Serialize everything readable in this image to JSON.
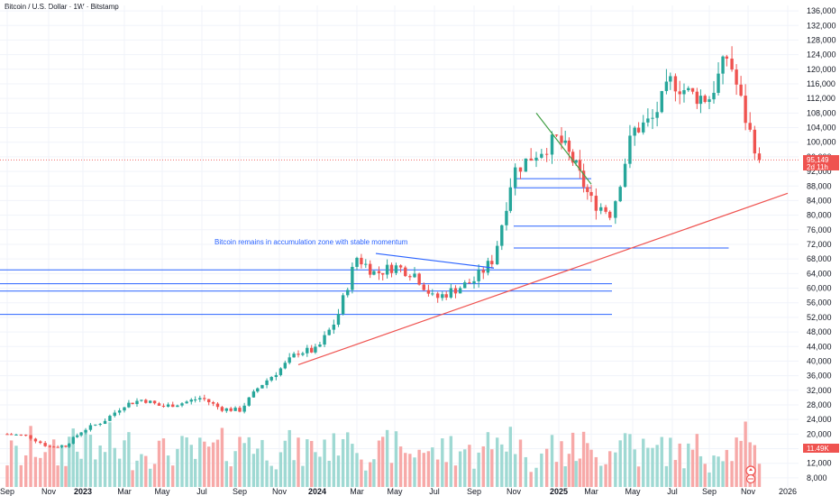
{
  "chart_data": {
    "type": "candlestick",
    "title": "Bitcoin / U.S. Dollar · 1W · Bitstamp",
    "price_axis": {
      "ticks": [
        136000,
        132000,
        128000,
        124000,
        120000,
        116000,
        112000,
        108000,
        104000,
        100000,
        96000,
        92000,
        88000,
        84000,
        80000,
        76000,
        72000,
        68000,
        64000,
        60000,
        56000,
        52000,
        48000,
        44000,
        40000,
        36000,
        32000,
        28000,
        24000,
        20000,
        16000,
        12000,
        8000
      ],
      "tick_labels": [
        "136,000",
        "132,000",
        "128,000",
        "124,000",
        "120,000",
        "116,000",
        "112,000",
        "108,000",
        "104,000",
        "100,000",
        "96,000",
        "92,000",
        "88,000",
        "84,000",
        "80,000",
        "76,000",
        "72,000",
        "68,000",
        "64,000",
        "60,000",
        "56,000",
        "52,000",
        "48,000",
        "44,000",
        "40,000",
        "36,000",
        "32,000",
        "28,000",
        "24,000",
        "20,000",
        "16,000",
        "12,000",
        "8,000"
      ],
      "range": [
        5500,
        137500
      ]
    },
    "time_axis": {
      "labels": [
        "Sep",
        "Nov",
        "2023",
        "Mar",
        "May",
        "Jul",
        "Sep",
        "Nov",
        "2024",
        "Mar",
        "May",
        "Jul",
        "Sep",
        "Nov",
        "2025",
        "Mar",
        "May",
        "Jul",
        "Sep",
        "Nov",
        "2026"
      ],
      "dates": [
        "2022-09",
        "2022-11",
        "2023-01",
        "2023-03",
        "2023-05",
        "2023-07",
        "2023-09",
        "2023-11",
        "2024-01",
        "2024-03",
        "2024-05",
        "2024-07",
        "2024-09",
        "2024-11",
        "2025-01",
        "2025-03",
        "2025-05",
        "2025-07",
        "2025-09",
        "2025-11",
        "2026-01"
      ]
    },
    "series": [
      {
        "kind": "candles",
        "ohlc_anchors": [
          [
            "2022-09",
            20000
          ],
          [
            "2022-10",
            19500
          ],
          [
            "2022-11",
            16500
          ],
          [
            "2022-12",
            16800
          ],
          [
            "2023-01",
            21000
          ],
          [
            "2023-02",
            23500
          ],
          [
            "2023-03",
            28000
          ],
          [
            "2023-04",
            29500
          ],
          [
            "2023-05",
            27500
          ],
          [
            "2023-06",
            28500
          ],
          [
            "2023-07",
            30000
          ],
          [
            "2023-08",
            27000
          ],
          [
            "2023-09",
            26500
          ],
          [
            "2023-10",
            33000
          ],
          [
            "2023-11",
            37500
          ],
          [
            "2023-12",
            42500
          ],
          [
            "2024-01",
            43000
          ],
          [
            "2024-02",
            51500
          ],
          [
            "2024-03",
            68500
          ],
          [
            "2024-04",
            64000
          ],
          [
            "2024-05",
            66000
          ],
          [
            "2024-06",
            64000
          ],
          [
            "2024-07",
            57000
          ],
          [
            "2024-08",
            59500
          ],
          [
            "2024-09",
            62000
          ],
          [
            "2024-10",
            68000
          ],
          [
            "2024-11",
            92000
          ],
          [
            "2024-12",
            97000
          ],
          [
            "2025-01",
            101000
          ],
          [
            "2025-02",
            94000
          ],
          [
            "2025-03",
            84000
          ],
          [
            "2025-04",
            80500
          ],
          [
            "2025-05",
            103000
          ],
          [
            "2025-06",
            106000
          ],
          [
            "2025-07",
            117000
          ],
          [
            "2025-08",
            113000
          ],
          [
            "2025-09",
            112000
          ],
          [
            "2025-10",
            124000
          ],
          [
            "2025-11",
            104000
          ],
          [
            "2025-11-20",
            95149
          ]
        ]
      }
    ],
    "current_price": {
      "label": "95,149",
      "countdown": "2d 11h",
      "value": 95149
    },
    "volume_label": "11.49K",
    "annotation": "Bitcoin remains in accumulation zone with stable momentum",
    "horizontal_levels": [
      {
        "value": 65000,
        "from": "2022-09",
        "to": "2025-03"
      },
      {
        "value": 61200,
        "from": "2022-09",
        "to": "2025-04"
      },
      {
        "value": 59200,
        "from": "2022-09",
        "to": "2025-04"
      },
      {
        "value": 52800,
        "from": "2022-09",
        "to": "2025-04"
      },
      {
        "value": 71000,
        "from": "2024-11",
        "to": "2025-10"
      },
      {
        "value": 90000,
        "from": "2024-11",
        "to": "2025-03"
      },
      {
        "value": 87500,
        "from": "2024-11",
        "to": "2025-03"
      },
      {
        "value": 77000,
        "from": "2024-11",
        "to": "2025-04"
      }
    ],
    "trendlines": [
      {
        "from": [
          "2023-12",
          39000
        ],
        "to": [
          "2026-01",
          86000
        ],
        "color": "#ef5350"
      },
      {
        "from": [
          "2024-04",
          69500
        ],
        "to": [
          "2024-10",
          65500
        ],
        "color": "#2962ff"
      },
      {
        "from": [
          "2024-12",
          108000
        ],
        "to": [
          "2025-03",
          88500
        ],
        "color": "#43a047"
      }
    ],
    "colors": {
      "up": "#26a69a",
      "down": "#ef5350",
      "level": "#2962ff",
      "grid": "#f0f3fa"
    }
  }
}
